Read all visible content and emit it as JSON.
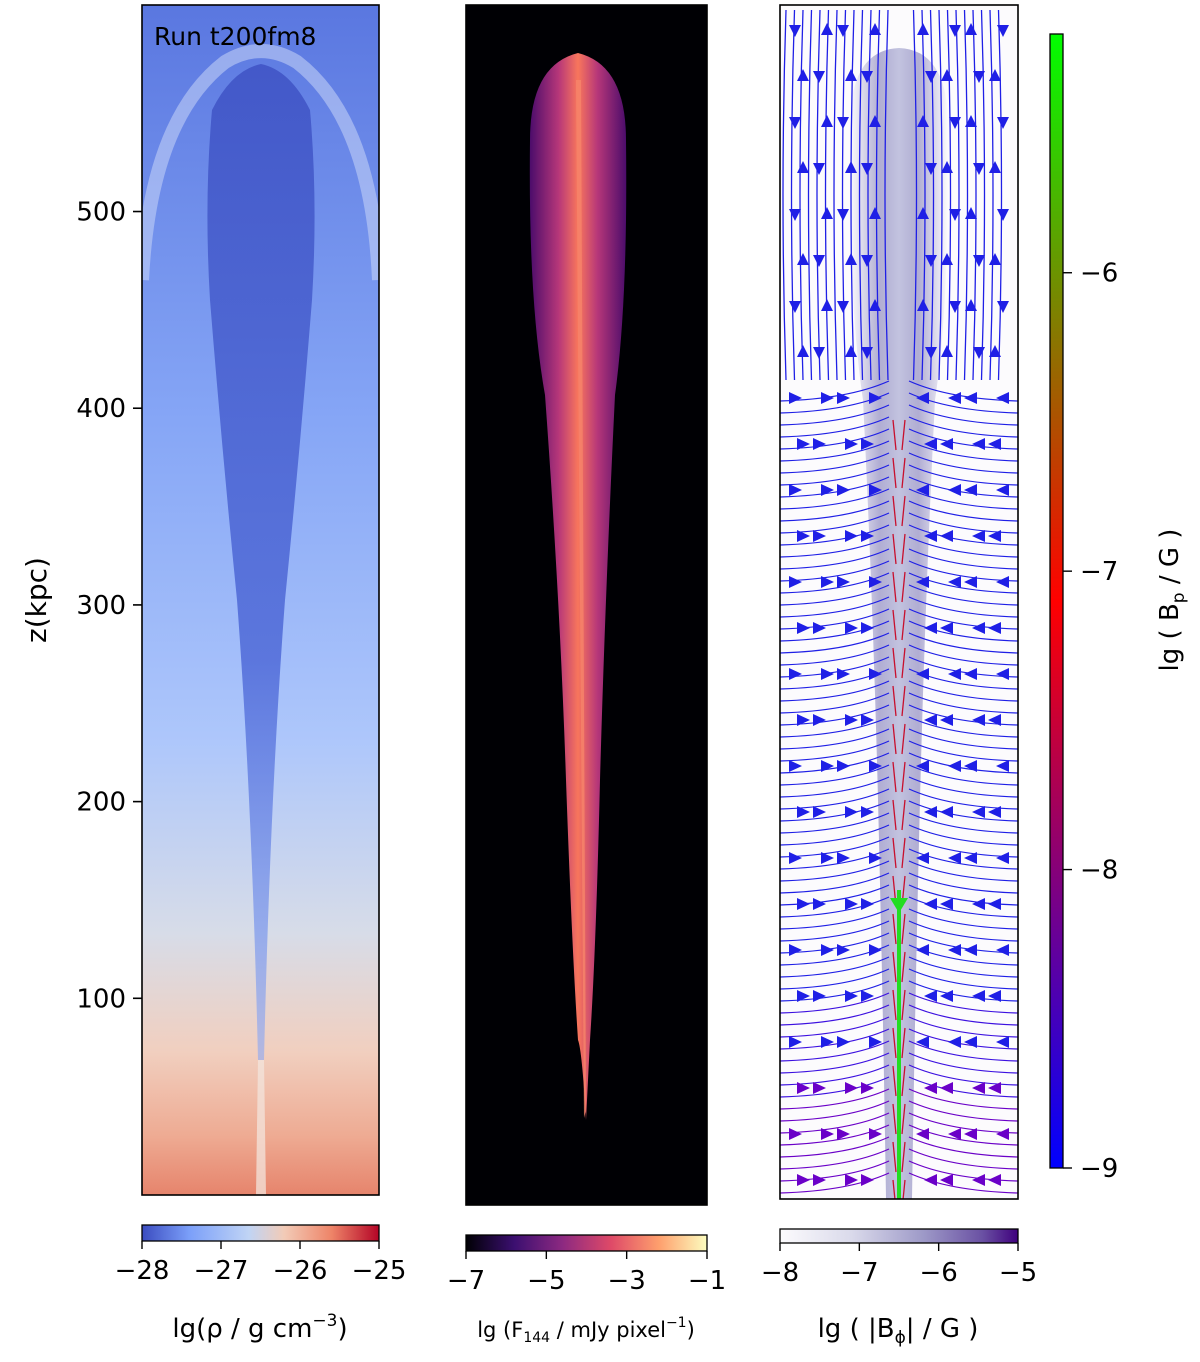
{
  "chart_data": [
    {
      "type": "heatmap",
      "panel": "density",
      "annotation": "Run t200fm8",
      "ylabel": "z(kpc)",
      "yticks": [
        100,
        200,
        300,
        400,
        500
      ],
      "ytick_labels": [
        "100",
        "200",
        "300",
        "400",
        "500"
      ],
      "ylim": [
        0,
        605
      ],
      "colorbar": {
        "label": "lg(ρ / g cm",
        "label_sup": "−3",
        "label_end": ")",
        "range": [
          -28,
          -25
        ],
        "ticks": [
          -28,
          -27,
          -26,
          -25
        ],
        "tick_labels": [
          "−28",
          "−27",
          "−26",
          "−25"
        ],
        "colormap": "coolwarm",
        "colors": [
          "#3b4cc0",
          "#7b9ff9",
          "#c0d4f5",
          "#f2cbb7",
          "#ee8468",
          "#b40426"
        ]
      }
    },
    {
      "type": "heatmap",
      "panel": "radio-flux",
      "ylim": [
        0,
        605
      ],
      "colorbar": {
        "label": "lg (F",
        "label_sub": "144",
        "label_mid": " / mJy pixel",
        "label_sup": "−1",
        "label_end": ")",
        "range": [
          -7,
          -1
        ],
        "ticks": [
          -7,
          -5,
          -3,
          -1
        ],
        "tick_labels": [
          "−7",
          "−5",
          "−3",
          "−1"
        ],
        "colormap": "magma",
        "colors": [
          "#000004",
          "#3b0f70",
          "#8c2981",
          "#de4968",
          "#fe9f6d",
          "#fcfdbf"
        ]
      }
    },
    {
      "type": "streamplot",
      "panel": "magnetic-field",
      "ylim": [
        0,
        605
      ],
      "colorbar_bphi": {
        "label": "lg ( |B",
        "label_sub": "ϕ",
        "label_end": "| / G )",
        "range": [
          -8,
          -5
        ],
        "ticks": [
          -8,
          -7,
          -6,
          -5
        ],
        "tick_labels": [
          "−8",
          "−7",
          "−6",
          "−5"
        ],
        "colormap": "Purples",
        "colors": [
          "#fcfbfd",
          "#dadaeb",
          "#9e9ac8",
          "#6a51a3",
          "#3f007d"
        ]
      },
      "colorbar_bp": {
        "label": "lg ( B",
        "label_sub": "p",
        "label_end": " / G )",
        "range": [
          -9,
          -5.2
        ],
        "ticks": [
          -9,
          -8,
          -7,
          -6
        ],
        "tick_labels": [
          "−9",
          "−8",
          "−7",
          "−6"
        ],
        "colormap": "brg",
        "colors": [
          "#0000ff",
          "#ff0000",
          "#00ff00"
        ]
      }
    }
  ]
}
